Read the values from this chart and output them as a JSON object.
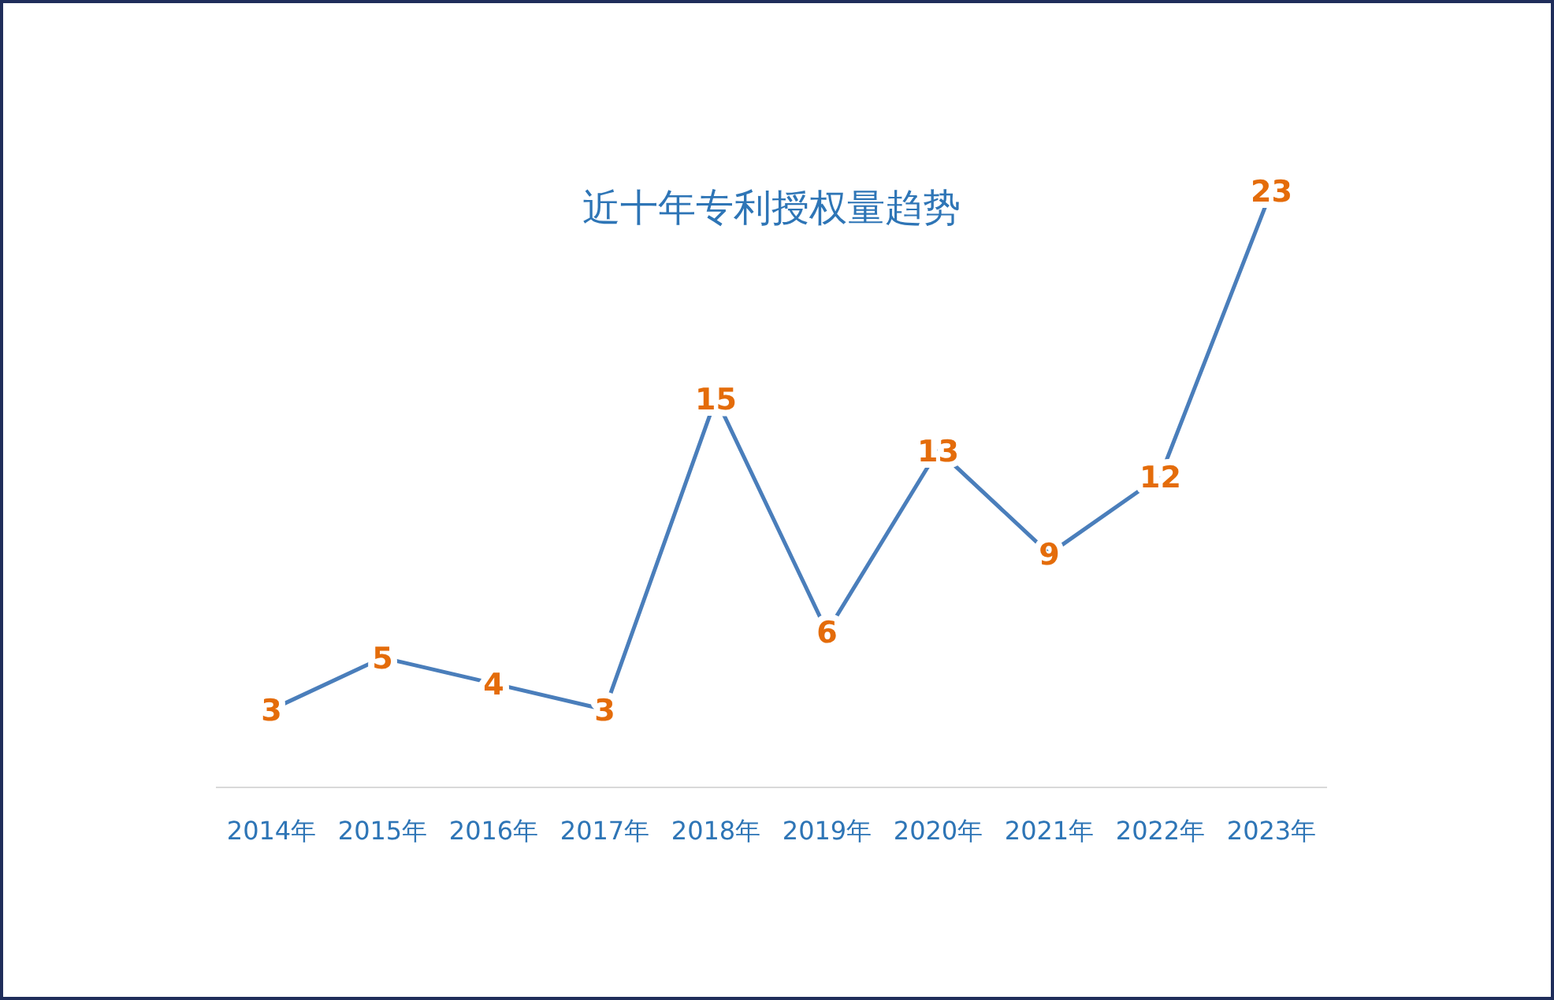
{
  "chart_data": {
    "type": "line",
    "title": "近十年专利授权量趋势",
    "categories": [
      "2014年",
      "2015年",
      "2016年",
      "2017年",
      "2018年",
      "2019年",
      "2020年",
      "2021年",
      "2022年",
      "2023年"
    ],
    "values": [
      3,
      5,
      4,
      3,
      15,
      6,
      13,
      9,
      12,
      23
    ],
    "color": "#4a7ebb",
    "marker": "none",
    "data_labels": true
  }
}
